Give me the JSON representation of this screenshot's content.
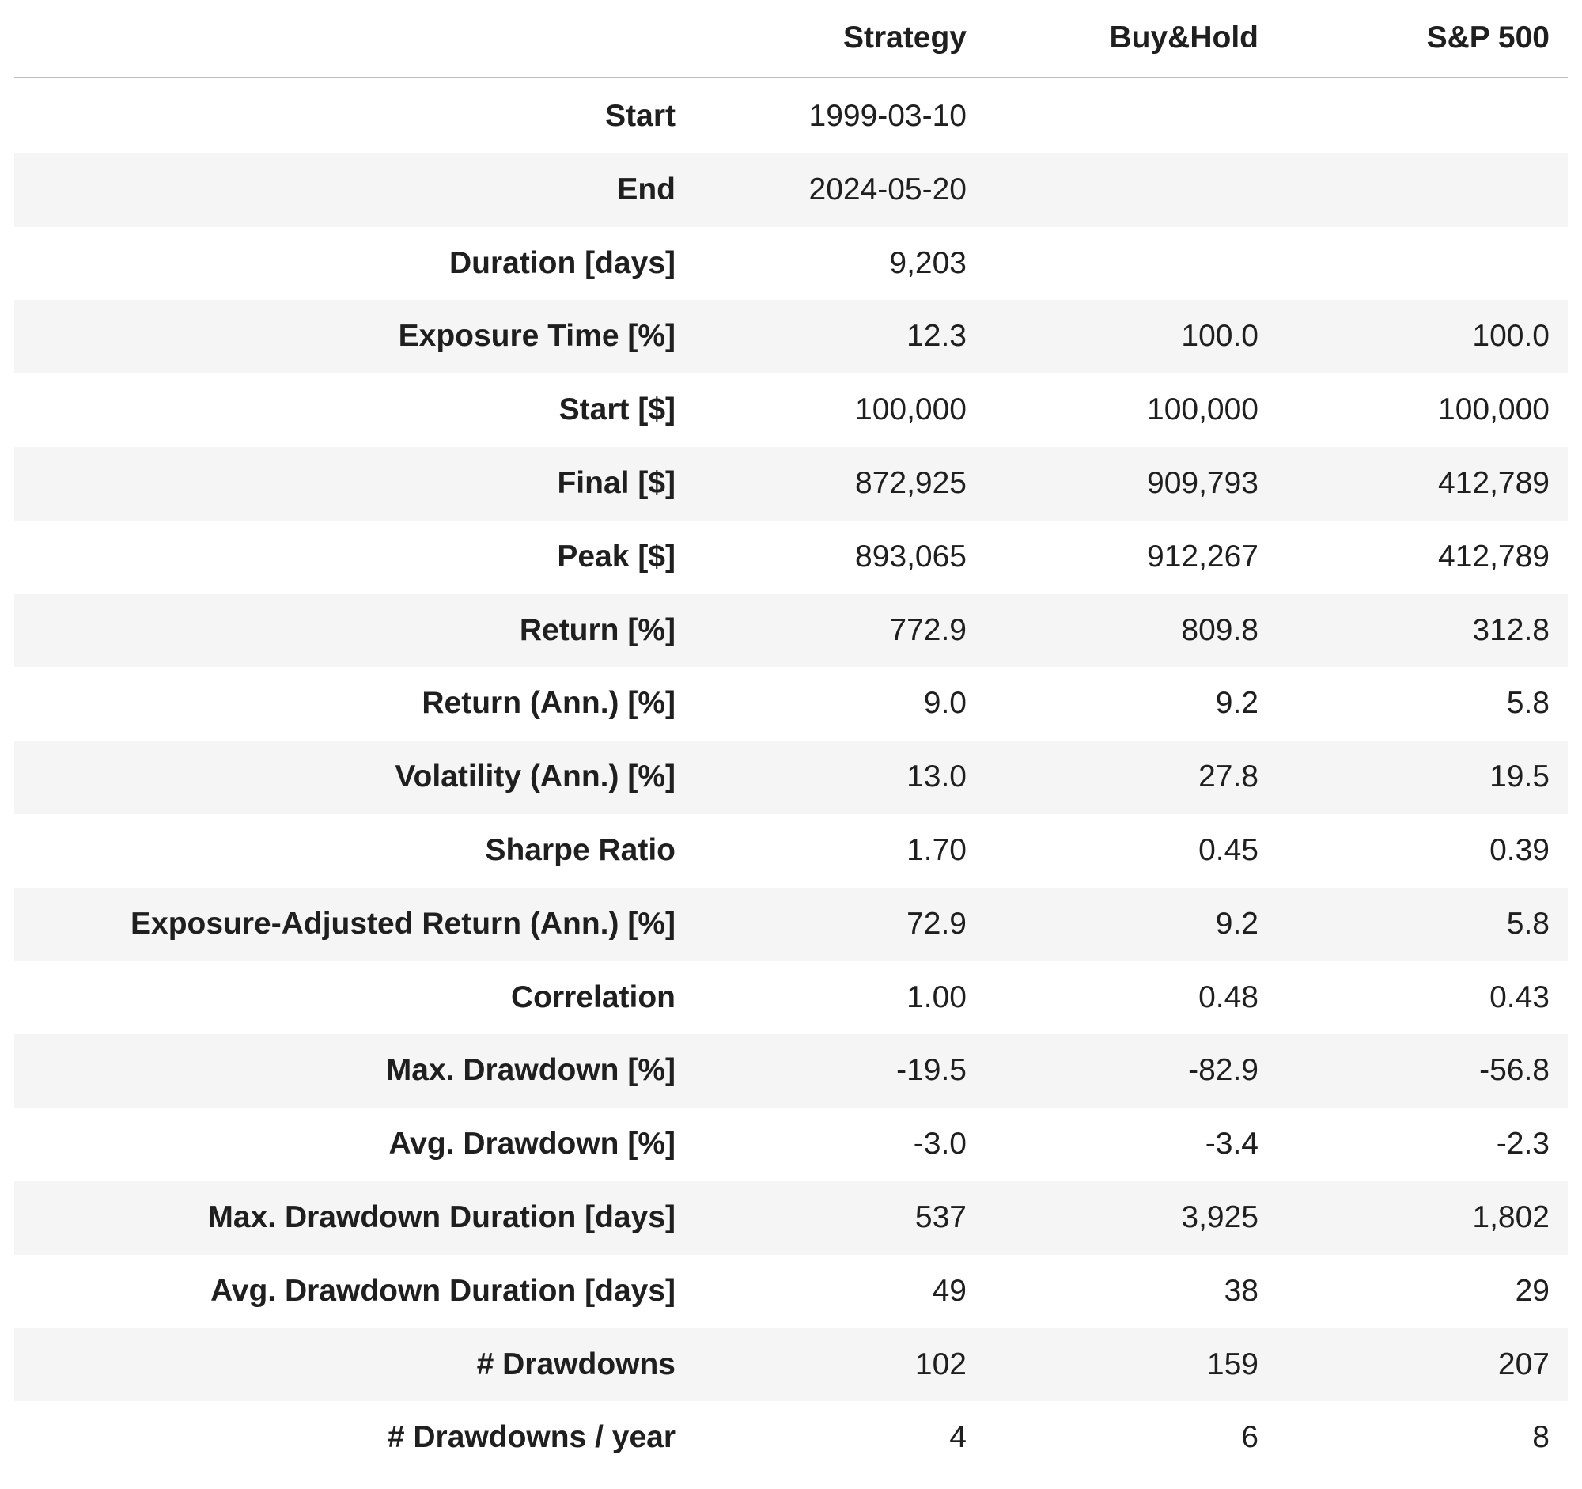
{
  "table": {
    "columns": [
      "Strategy",
      "Buy&Hold",
      "S&P 500"
    ],
    "rows": [
      {
        "label": "Start",
        "cells": [
          "1999-03-10",
          null,
          null
        ]
      },
      {
        "label": "End",
        "cells": [
          "2024-05-20",
          null,
          null
        ]
      },
      {
        "label": "Duration [days]",
        "cells": [
          "9,203",
          null,
          null
        ]
      },
      {
        "label": "Exposure Time [%]",
        "cells": [
          "12.3",
          "100.0",
          "100.0"
        ]
      },
      {
        "label": "Start [$]",
        "cells": [
          "100,000",
          "100,000",
          "100,000"
        ]
      },
      {
        "label": "Final [$]",
        "cells": [
          "872,925",
          "909,793",
          "412,789"
        ]
      },
      {
        "label": "Peak [$]",
        "cells": [
          "893,065",
          "912,267",
          "412,789"
        ]
      },
      {
        "label": "Return [%]",
        "cells": [
          "772.9",
          "809.8",
          "312.8"
        ]
      },
      {
        "label": "Return (Ann.) [%]",
        "cells": [
          "9.0",
          "9.2",
          "5.8"
        ]
      },
      {
        "label": "Volatility (Ann.) [%]",
        "cells": [
          "13.0",
          "27.8",
          "19.5"
        ]
      },
      {
        "label": "Sharpe Ratio",
        "cells": [
          "1.70",
          "0.45",
          "0.39"
        ]
      },
      {
        "label": "Exposure-Adjusted Return (Ann.) [%]",
        "cells": [
          "72.9",
          "9.2",
          "5.8"
        ]
      },
      {
        "label": "Correlation",
        "cells": [
          "1.00",
          "0.48",
          "0.43"
        ]
      },
      {
        "label": "Max. Drawdown [%]",
        "cells": [
          "-19.5",
          "-82.9",
          "-56.8"
        ]
      },
      {
        "label": "Avg. Drawdown [%]",
        "cells": [
          "-3.0",
          "-3.4",
          "-2.3"
        ]
      },
      {
        "label": "Max. Drawdown Duration [days]",
        "cells": [
          "537",
          "3,925",
          "1,802"
        ]
      },
      {
        "label": "Avg. Drawdown Duration [days]",
        "cells": [
          "49",
          "38",
          "29"
        ]
      },
      {
        "label": "# Drawdowns",
        "cells": [
          "102",
          "159",
          "207"
        ]
      },
      {
        "label": "# Drawdowns / year",
        "cells": [
          "4",
          "6",
          "8"
        ]
      }
    ]
  }
}
